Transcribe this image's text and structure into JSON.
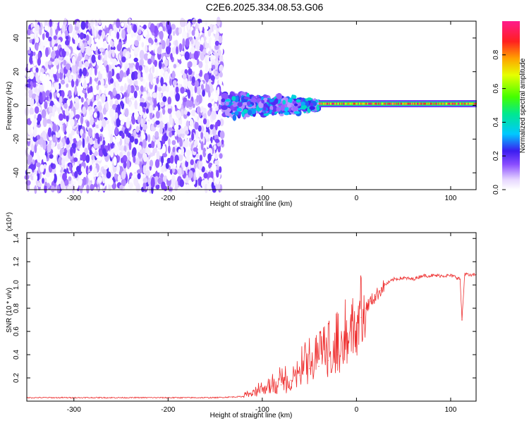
{
  "title": "C2E6.2025.334.08.53.G06",
  "chart_data": [
    {
      "type": "heatmap",
      "xlabel": "Height of straight line (km)",
      "ylabel": "Frequency (Hz)",
      "xlim": [
        -350,
        127
      ],
      "ylim": [
        -50,
        50
      ],
      "xticks": [
        -300,
        -200,
        -100,
        0,
        100
      ],
      "yticks": [
        -40,
        -20,
        0,
        20,
        40
      ],
      "colorbar": {
        "label": "Normalized spectral amplitude",
        "range": [
          0,
          1
        ],
        "ticks": [
          0.0,
          0.2,
          0.4,
          0.6,
          0.8
        ]
      },
      "regions": [
        {
          "x": [
            -350,
            -142
          ],
          "freq": [
            -50,
            50
          ],
          "amplitude_range": [
            0.0,
            0.2
          ]
        },
        {
          "x": [
            -142,
            -40
          ],
          "freq": [
            -10,
            10
          ],
          "amplitude_range": [
            0.1,
            0.4
          ]
        },
        {
          "x": [
            -40,
            127
          ],
          "freq": [
            -1,
            3
          ],
          "amplitude_range": [
            0.4,
            1.0
          ]
        }
      ]
    },
    {
      "type": "line",
      "xlabel": "Height of straight line (km)",
      "ylabel": "SNR (10 * v/v)",
      "y_multiplier": "(x10⁴)",
      "xlim": [
        -350,
        127
      ],
      "ylim": [
        0,
        1.45
      ],
      "xticks": [
        -300,
        -200,
        -100,
        0,
        100
      ],
      "yticks": [
        0.2,
        0.4,
        0.6,
        0.8,
        1.0,
        1.2,
        1.4
      ],
      "color": "#ee3030",
      "series": [
        {
          "x": [
            -350,
            -300,
            -250,
            -200,
            -150,
            -120,
            -110,
            -100,
            -90,
            -80,
            -70,
            -60,
            -50,
            -40,
            -30,
            -20,
            -10,
            0,
            5,
            10,
            15,
            20,
            25,
            30,
            40,
            50,
            60,
            70,
            80,
            90,
            100,
            105,
            110,
            112,
            115,
            120,
            127
          ],
          "y": [
            0.03,
            0.03,
            0.03,
            0.03,
            0.03,
            0.04,
            0.06,
            0.1,
            0.13,
            0.14,
            0.18,
            0.22,
            0.28,
            0.3,
            0.35,
            0.4,
            0.5,
            0.6,
            0.72,
            0.8,
            0.86,
            0.9,
            0.95,
            1.0,
            1.05,
            1.06,
            1.05,
            1.08,
            1.08,
            1.08,
            1.08,
            1.07,
            1.05,
            0.7,
            1.1,
            1.08,
            1.09
          ]
        }
      ]
    }
  ]
}
